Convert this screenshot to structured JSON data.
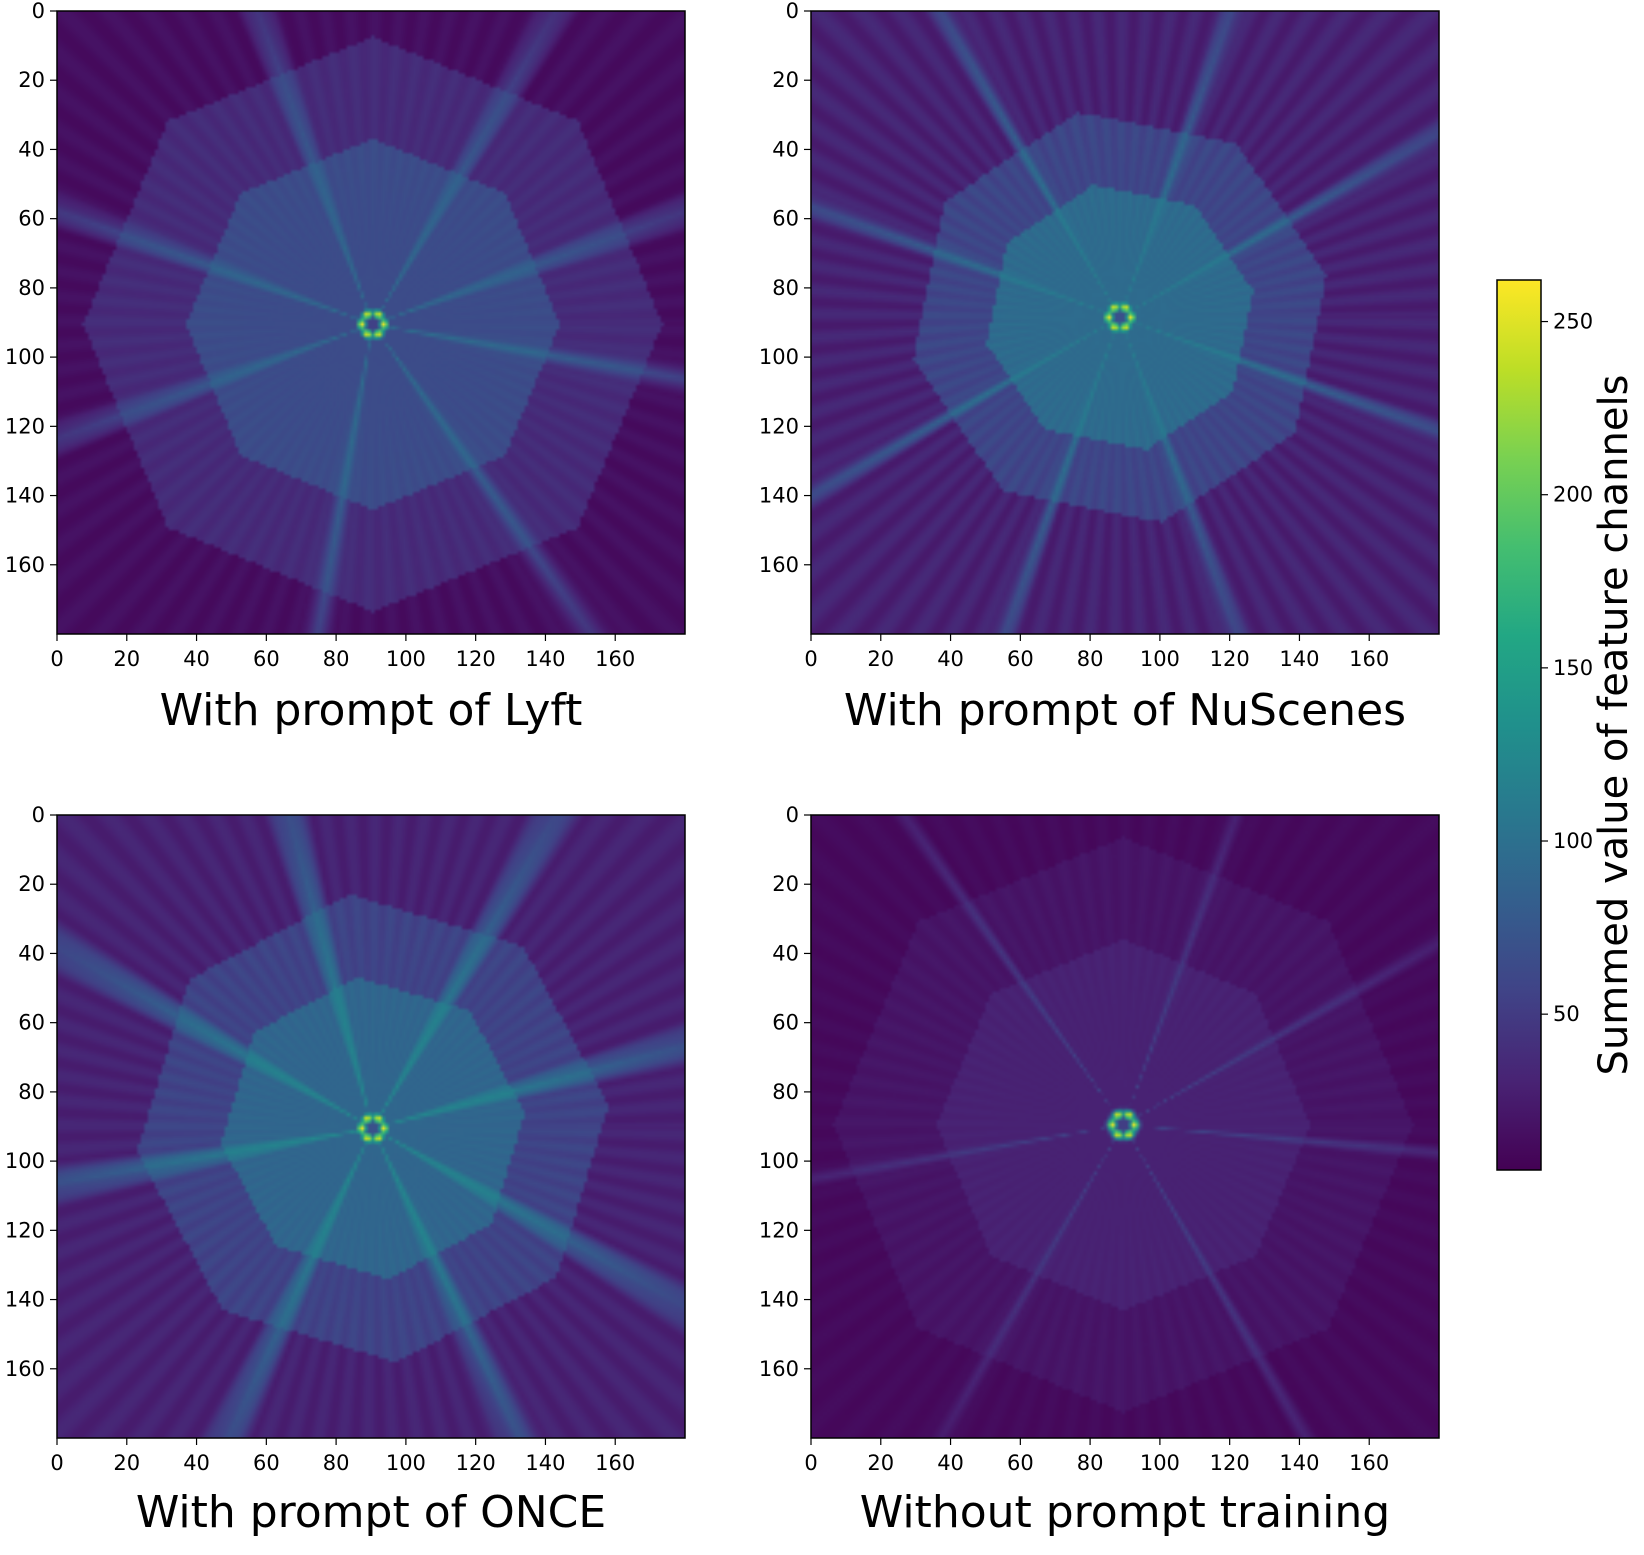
{
  "chart_data": [
    {
      "type": "heatmap",
      "title": "With prompt of Lyft",
      "x_ticks": [
        "0",
        "20",
        "40",
        "60",
        "80",
        "100",
        "120",
        "140",
        "160"
      ],
      "y_ticks": [
        "0",
        "20",
        "40",
        "60",
        "80",
        "100",
        "120",
        "140",
        "160"
      ],
      "xlim": [
        0,
        180
      ],
      "ylim": [
        180,
        0
      ],
      "grid_size": [
        180,
        180
      ],
      "colormap": "viridis",
      "hotspot": {
        "x": 90,
        "y": 90,
        "value_max": 260
      },
      "background_value": 15,
      "description_values": {
        "inner_octagon_value": 65,
        "ray_value": 100
      }
    },
    {
      "type": "heatmap",
      "title": "With prompt of NuScenes",
      "x_ticks": [
        "0",
        "20",
        "40",
        "60",
        "80",
        "100",
        "120",
        "140",
        "160"
      ],
      "y_ticks": [
        "0",
        "20",
        "40",
        "60",
        "80",
        "100",
        "120",
        "140",
        "160"
      ],
      "xlim": [
        0,
        180
      ],
      "ylim": [
        180,
        0
      ],
      "grid_size": [
        180,
        180
      ],
      "colormap": "viridis",
      "hotspot": {
        "x": 88,
        "y": 88,
        "value_max": 260
      },
      "background_value": 30,
      "description_values": {
        "inner_octagon_value": 95,
        "ray_value": 115
      }
    },
    {
      "type": "heatmap",
      "title": "With prompt of ONCE",
      "x_ticks": [
        "0",
        "20",
        "40",
        "60",
        "80",
        "100",
        "120",
        "140",
        "160"
      ],
      "y_ticks": [
        "0",
        "20",
        "40",
        "60",
        "80",
        "100",
        "120",
        "140",
        "160"
      ],
      "xlim": [
        0,
        180
      ],
      "ylim": [
        180,
        0
      ],
      "grid_size": [
        180,
        180
      ],
      "colormap": "viridis",
      "hotspot": {
        "x": 90,
        "y": 90,
        "value_max": 260
      },
      "background_value": 30,
      "description_values": {
        "inner_octagon_value": 90,
        "ray_value": 130
      }
    },
    {
      "type": "heatmap",
      "title": "Without prompt training",
      "x_ticks": [
        "0",
        "20",
        "40",
        "60",
        "80",
        "100",
        "120",
        "140",
        "160"
      ],
      "y_ticks": [
        "0",
        "20",
        "40",
        "60",
        "80",
        "100",
        "120",
        "140",
        "160"
      ],
      "xlim": [
        0,
        180
      ],
      "ylim": [
        180,
        0
      ],
      "grid_size": [
        180,
        180
      ],
      "colormap": "viridis",
      "hotspot": {
        "x": 89,
        "y": 89,
        "value_max": 260
      },
      "background_value": 12,
      "description_values": {
        "inner_octagon_value": 30,
        "ray_value": 60
      }
    }
  ],
  "colorbar": {
    "label": "Summed value of feature channels",
    "ticks": [
      "50",
      "100",
      "150",
      "200",
      "250"
    ],
    "tick_values": [
      50,
      100,
      150,
      200,
      250
    ],
    "range": [
      5,
      262
    ],
    "colormap": "viridis"
  },
  "colors": {
    "viridis_low": "#440154",
    "viridis_mid": "#21918c",
    "viridis_high": "#fde725"
  }
}
